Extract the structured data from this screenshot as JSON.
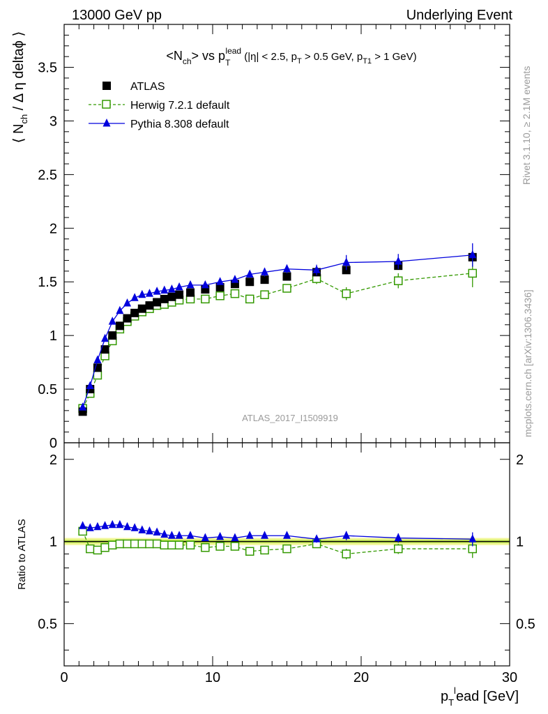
{
  "header": {
    "left": "13000 GeV pp",
    "right": "Underlying Event"
  },
  "side_labels": {
    "rivet": "Rivet 3.1.10, ≥ 2.1M events",
    "mcplots": "mcplots.cern.ch [arXiv:1306.3436]"
  },
  "watermark": "ATLAS_2017_I1509919",
  "colors": {
    "atlas": "#000000",
    "herwig": "#339900",
    "pythia": "#0000dd",
    "band_outer": "#f2f79a",
    "band_inner": "#c9ee5c"
  },
  "chart_data": [
    {
      "type": "line",
      "title": "<Nch> vs pT lead (|η| < 2.5, pT > 0.5 GeV, pT1 > 1 GeV)",
      "ylabel": "⟨ Nch / Δη deltaϕ ⟩",
      "xlim": [
        0,
        30
      ],
      "ylim": [
        0,
        3.9
      ],
      "yticks": [
        "0",
        "0.5",
        "1",
        "1.5",
        "2",
        "2.5",
        "3",
        "3.5"
      ],
      "legend": "top-left",
      "x": [
        1.25,
        1.75,
        2.25,
        2.75,
        3.25,
        3.75,
        4.25,
        4.75,
        5.25,
        5.75,
        6.25,
        6.75,
        7.25,
        7.75,
        8.5,
        9.5,
        10.5,
        11.5,
        12.5,
        13.5,
        15.0,
        17.0,
        19.0,
        22.5,
        27.5
      ],
      "series": [
        {
          "name": "ATLAS",
          "marker": "square",
          "values": [
            0.29,
            0.5,
            0.7,
            0.87,
            1.0,
            1.09,
            1.16,
            1.21,
            1.25,
            1.28,
            1.31,
            1.34,
            1.36,
            1.38,
            1.4,
            1.43,
            1.45,
            1.48,
            1.5,
            1.52,
            1.55,
            1.59,
            1.61,
            1.65,
            1.73
          ]
        },
        {
          "name": "Herwig 7.2.1 default",
          "marker": "open-square",
          "values": [
            0.32,
            0.46,
            0.63,
            0.81,
            0.95,
            1.06,
            1.13,
            1.18,
            1.22,
            1.25,
            1.28,
            1.29,
            1.31,
            1.33,
            1.34,
            1.34,
            1.37,
            1.39,
            1.34,
            1.38,
            1.44,
            1.53,
            1.39,
            1.51,
            1.58
          ],
          "errors": [
            0.02,
            0.02,
            0.02,
            0.02,
            0.02,
            0.02,
            0.02,
            0.02,
            0.02,
            0.02,
            0.02,
            0.02,
            0.02,
            0.02,
            0.02,
            0.02,
            0.02,
            0.02,
            0.02,
            0.03,
            0.03,
            0.05,
            0.06,
            0.07,
            0.13
          ]
        },
        {
          "name": "Pythia 8.308 default",
          "marker": "triangle",
          "values": [
            0.33,
            0.53,
            0.77,
            0.97,
            1.13,
            1.23,
            1.3,
            1.35,
            1.38,
            1.39,
            1.41,
            1.42,
            1.43,
            1.45,
            1.47,
            1.47,
            1.5,
            1.52,
            1.57,
            1.59,
            1.62,
            1.61,
            1.68,
            1.69,
            1.75
          ],
          "errors": [
            0.02,
            0.02,
            0.02,
            0.02,
            0.02,
            0.02,
            0.02,
            0.02,
            0.02,
            0.02,
            0.02,
            0.02,
            0.02,
            0.02,
            0.02,
            0.02,
            0.02,
            0.02,
            0.03,
            0.04,
            0.04,
            0.05,
            0.07,
            0.07,
            0.11
          ]
        }
      ]
    },
    {
      "type": "line",
      "ylabel": "Ratio to ATLAS",
      "xlabel": "pTlead [GeV]",
      "xlim": [
        0,
        30
      ],
      "xticks": [
        "0",
        "10",
        "20",
        "30"
      ],
      "ylim": [
        0.35,
        2.3
      ],
      "ylog": true,
      "yticks": [
        "0.5",
        "1",
        "2"
      ],
      "reference": 1.0,
      "x": [
        1.25,
        1.75,
        2.25,
        2.75,
        3.25,
        3.75,
        4.25,
        4.75,
        5.25,
        5.75,
        6.25,
        6.75,
        7.25,
        7.75,
        8.5,
        9.5,
        10.5,
        11.5,
        12.5,
        13.5,
        15.0,
        17.0,
        19.0,
        22.5,
        27.5
      ],
      "series": [
        {
          "name": "Herwig 7.2.1 default",
          "marker": "open-square",
          "values": [
            1.09,
            0.94,
            0.93,
            0.95,
            0.97,
            0.98,
            0.98,
            0.98,
            0.98,
            0.98,
            0.98,
            0.97,
            0.97,
            0.97,
            0.97,
            0.95,
            0.96,
            0.96,
            0.92,
            0.93,
            0.94,
            0.98,
            0.9,
            0.94,
            0.94
          ],
          "errors": [
            0.01,
            0.01,
            0.01,
            0.01,
            0.01,
            0.01,
            0.01,
            0.01,
            0.01,
            0.01,
            0.01,
            0.01,
            0.01,
            0.01,
            0.01,
            0.01,
            0.01,
            0.01,
            0.01,
            0.02,
            0.02,
            0.03,
            0.04,
            0.04,
            0.07
          ]
        },
        {
          "name": "Pythia 8.308 default",
          "marker": "triangle",
          "values": [
            1.14,
            1.12,
            1.13,
            1.14,
            1.15,
            1.15,
            1.13,
            1.12,
            1.1,
            1.09,
            1.08,
            1.06,
            1.05,
            1.05,
            1.05,
            1.03,
            1.04,
            1.03,
            1.05,
            1.05,
            1.05,
            1.02,
            1.05,
            1.03,
            1.02
          ],
          "errors": [
            0.01,
            0.01,
            0.01,
            0.01,
            0.01,
            0.01,
            0.01,
            0.01,
            0.01,
            0.01,
            0.01,
            0.01,
            0.01,
            0.01,
            0.01,
            0.01,
            0.01,
            0.01,
            0.02,
            0.02,
            0.02,
            0.03,
            0.04,
            0.04,
            0.06
          ]
        }
      ]
    }
  ]
}
